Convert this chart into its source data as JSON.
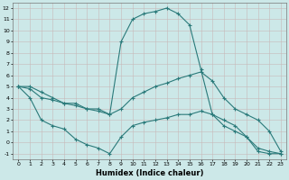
{
  "xlabel": "Humidex (Indice chaleur)",
  "bg_color": "#cce8e8",
  "grid_color": "#b0cccc",
  "line_color": "#2a7a7a",
  "xlim": [
    -0.5,
    23.5
  ],
  "ylim": [
    -1.5,
    12.5
  ],
  "xticks": [
    0,
    1,
    2,
    3,
    4,
    5,
    6,
    7,
    8,
    9,
    10,
    11,
    12,
    13,
    14,
    15,
    16,
    17,
    18,
    19,
    20,
    21,
    22,
    23
  ],
  "yticks": [
    -1,
    0,
    1,
    2,
    3,
    4,
    5,
    6,
    7,
    8,
    9,
    10,
    11,
    12
  ],
  "line1_x": [
    0,
    1,
    2,
    3,
    4,
    5,
    6,
    7,
    8,
    9,
    10,
    11,
    12,
    13,
    14,
    15,
    16,
    17,
    18,
    19,
    20,
    21,
    22,
    23
  ],
  "line1_y": [
    5.0,
    5.0,
    4.5,
    4.0,
    3.5,
    3.5,
    3.0,
    3.0,
    2.5,
    9.0,
    11.0,
    11.5,
    11.7,
    12.0,
    11.5,
    10.5,
    6.5,
    2.5,
    2.0,
    1.5,
    0.5,
    -0.8,
    -1.0,
    -1.0
  ],
  "line2_x": [
    0,
    1,
    2,
    3,
    4,
    5,
    6,
    7,
    8,
    9,
    10,
    11,
    12,
    13,
    14,
    15,
    16,
    17,
    18,
    19,
    20,
    21,
    22,
    23
  ],
  "line2_y": [
    5.0,
    4.8,
    4.0,
    3.8,
    3.5,
    3.3,
    3.0,
    2.8,
    2.5,
    3.0,
    4.0,
    4.5,
    5.0,
    5.3,
    5.7,
    6.0,
    6.3,
    5.5,
    4.0,
    3.0,
    2.5,
    2.0,
    1.0,
    -0.8
  ],
  "line3_x": [
    0,
    1,
    2,
    3,
    4,
    5,
    6,
    7,
    8,
    9,
    10,
    11,
    12,
    13,
    14,
    15,
    16,
    17,
    18,
    19,
    20,
    21,
    22,
    23
  ],
  "line3_y": [
    5.0,
    4.0,
    2.0,
    1.5,
    1.2,
    0.3,
    -0.2,
    -0.5,
    -1.0,
    0.5,
    1.5,
    1.8,
    2.0,
    2.2,
    2.5,
    2.5,
    2.8,
    2.5,
    1.5,
    1.0,
    0.5,
    -0.5,
    -0.8,
    -1.0
  ]
}
